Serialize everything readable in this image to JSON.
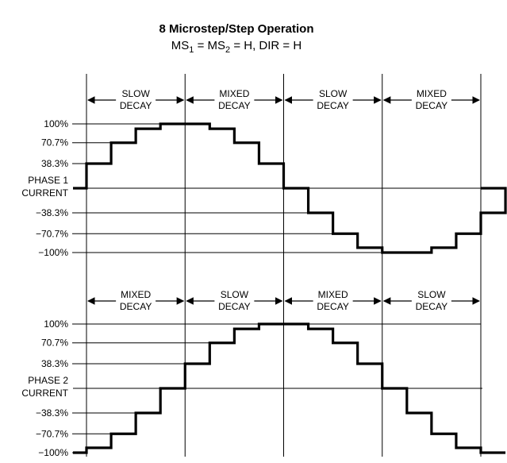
{
  "title": "8 Microstep/Step Operation",
  "subtitle": {
    "ms1": "MS",
    "ms1_sub": "1",
    "eq": " = MS",
    "ms2_sub": "2",
    "rest": " = H, DIR = H"
  },
  "phase1": {
    "label_line1": "PHASE 1",
    "label_line2": "CURRENT",
    "levels": [
      "100%",
      "70.7%",
      "38.3%",
      "−38.3%",
      "−70.7%",
      "−100%"
    ],
    "segments": [
      {
        "line1": "SLOW",
        "line2": "DECAY"
      },
      {
        "line1": "MIXED",
        "line2": "DECAY"
      },
      {
        "line1": "SLOW",
        "line2": "DECAY"
      },
      {
        "line1": "MIXED",
        "line2": "DECAY"
      }
    ],
    "steps": [
      0,
      0.383,
      0.707,
      0.924,
      1,
      1,
      0.924,
      0.707,
      0.383,
      0,
      -0.383,
      -0.707,
      -0.924,
      -1,
      -1,
      -0.924,
      -0.707,
      -0.383,
      0
    ]
  },
  "phase2": {
    "label_line1": "PHASE 2",
    "label_line2": "CURRENT",
    "levels": [
      "100%",
      "70.7%",
      "38.3%",
      "−38.3%",
      "−70.7%",
      "−100%"
    ],
    "segments": [
      {
        "line1": "MIXED",
        "line2": "DECAY"
      },
      {
        "line1": "SLOW",
        "line2": "DECAY"
      },
      {
        "line1": "MIXED",
        "line2": "DECAY"
      },
      {
        "line1": "SLOW",
        "line2": "DECAY"
      }
    ],
    "steps": [
      -1,
      -0.924,
      -0.707,
      -0.383,
      0,
      0.383,
      0.707,
      0.924,
      1,
      1,
      0.924,
      0.707,
      0.383,
      0,
      -0.383,
      -0.707,
      -0.924,
      -1,
      -1
    ]
  }
}
